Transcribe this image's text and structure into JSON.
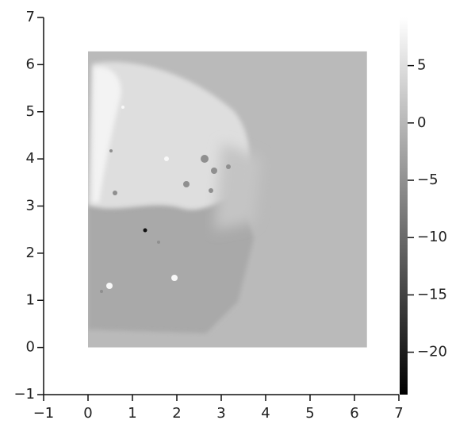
{
  "chart_data": {
    "type": "heatmap",
    "extent": [
      0,
      6.283,
      0,
      6.283
    ],
    "xlim": [
      -1,
      7
    ],
    "ylim": [
      -1,
      7
    ],
    "xticks": [
      {
        "value": -1,
        "label": "−1"
      },
      0,
      1,
      2,
      3,
      4,
      5,
      6,
      7
    ],
    "yticks": [
      {
        "value": -1,
        "label": "−1"
      },
      0,
      1,
      2,
      3,
      4,
      5,
      6,
      7
    ],
    "colorbar": {
      "lim": [
        -23.7,
        9.2
      ],
      "ticks": [
        5,
        0,
        {
          "value": -5,
          "label": "−5"
        },
        {
          "value": -10,
          "label": "−10"
        },
        {
          "value": -15,
          "label": "−15"
        },
        {
          "value": -20,
          "label": "−20"
        }
      ],
      "colors": [
        "#000000",
        "#ffffff"
      ]
    }
  }
}
